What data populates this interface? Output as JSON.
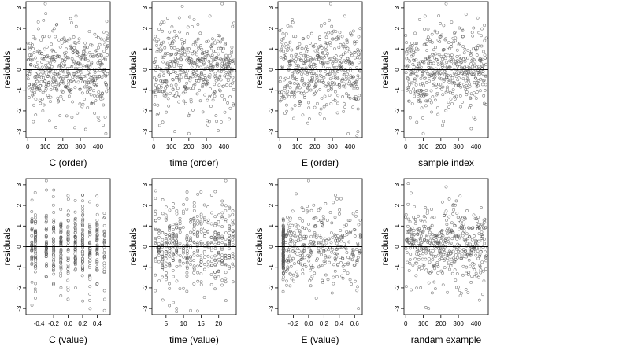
{
  "chart_data": [
    {
      "type": "scatter",
      "xlabel": "C (order)",
      "ylabel": "residuals",
      "xlim": [
        -10,
        470
      ],
      "ylim": [
        -3.3,
        3.3
      ],
      "xticks": [
        0,
        100,
        200,
        300,
        400
      ],
      "xtick_labels": [
        "0",
        "100",
        "200",
        "300",
        "400"
      ],
      "yticks": [
        -3,
        -2,
        -1,
        0,
        1,
        2,
        3
      ],
      "ytick_labels": [
        "-3",
        "-2",
        "-1",
        "0",
        "1",
        "2",
        "3"
      ],
      "hline": 0,
      "n_points": 460,
      "pattern": "index",
      "seed": 11,
      "points_sample": [
        {
          "x": 100,
          "y": 3.2
        },
        {
          "x": 275,
          "y": 2.6
        },
        {
          "x": 45,
          "y": -2.2
        },
        {
          "x": 160,
          "y": -2.8
        },
        {
          "x": 445,
          "y": -3.1
        },
        {
          "x": 330,
          "y": -2.9
        }
      ]
    },
    {
      "type": "scatter",
      "xlabel": "time (order)",
      "ylabel": "residuals",
      "xlim": [
        -10,
        470
      ],
      "ylim": [
        -3.3,
        3.3
      ],
      "xticks": [
        0,
        100,
        200,
        300,
        400
      ],
      "xtick_labels": [
        "0",
        "100",
        "200",
        "300",
        "400"
      ],
      "yticks": [
        -3,
        -2,
        -1,
        0,
        1,
        2,
        3
      ],
      "ytick_labels": [
        "-3",
        "-2",
        "-1",
        "0",
        "1",
        "2",
        "3"
      ],
      "hline": 0,
      "n_points": 460,
      "pattern": "index",
      "seed": 23,
      "points_sample": [
        {
          "x": 390,
          "y": 3.2
        },
        {
          "x": 320,
          "y": 2.6
        },
        {
          "x": 120,
          "y": -3.0
        },
        {
          "x": 200,
          "y": -3.1
        },
        {
          "x": 430,
          "y": -2.4
        }
      ]
    },
    {
      "type": "scatter",
      "xlabel": "E (order)",
      "ylabel": "residuals",
      "xlim": [
        -10,
        470
      ],
      "ylim": [
        -3.3,
        3.3
      ],
      "xticks": [
        0,
        100,
        200,
        300,
        400
      ],
      "xtick_labels": [
        "0",
        "100",
        "200",
        "300",
        "400"
      ],
      "yticks": [
        -3,
        -2,
        -1,
        0,
        1,
        2,
        3
      ],
      "ytick_labels": [
        "-3",
        "-2",
        "-1",
        "0",
        "1",
        "2",
        "3"
      ],
      "hline": 0,
      "n_points": 460,
      "pattern": "index",
      "seed": 37,
      "points_sample": [
        {
          "x": 290,
          "y": 3.2
        },
        {
          "x": 370,
          "y": 2.6
        },
        {
          "x": 160,
          "y": -2.6
        },
        {
          "x": 445,
          "y": -3.0
        },
        {
          "x": 440,
          "y": -3.2
        }
      ]
    },
    {
      "type": "scatter",
      "xlabel": "sample index",
      "ylabel": "residuals",
      "xlim": [
        -10,
        470
      ],
      "ylim": [
        -3.3,
        3.3
      ],
      "xticks": [
        0,
        100,
        200,
        300,
        400
      ],
      "xtick_labels": [
        "0",
        "100",
        "200",
        "300",
        "400"
      ],
      "yticks": [
        -3,
        -2,
        -1,
        0,
        1,
        2,
        3
      ],
      "ytick_labels": [
        "-3",
        "-2",
        "-1",
        "0",
        "1",
        "2",
        "3"
      ],
      "hline": 0,
      "n_points": 460,
      "pattern": "index",
      "seed": 41,
      "points_sample": [
        {
          "x": 230,
          "y": 3.2
        },
        {
          "x": 110,
          "y": 2.6
        },
        {
          "x": 100,
          "y": -3.1
        },
        {
          "x": 210,
          "y": -2.7
        }
      ]
    },
    {
      "type": "scatter",
      "xlabel": "C (value)",
      "ylabel": "residuals",
      "xlim": [
        -0.58,
        0.58
      ],
      "ylim": [
        -3.3,
        3.3
      ],
      "xticks": [
        -0.4,
        -0.2,
        0.0,
        0.2,
        0.4
      ],
      "xtick_labels": [
        "-0.4",
        "-0.2",
        "0.0",
        "0.2",
        "0.4"
      ],
      "yticks": [
        -3,
        -2,
        -1,
        0,
        1,
        2,
        3
      ],
      "ytick_labels": [
        "-3",
        "-2",
        "-1",
        "0",
        "1",
        "2",
        "3"
      ],
      "hline": 0,
      "n_points": 460,
      "pattern": "columns",
      "seed": 53,
      "columns": [
        -0.5,
        -0.45,
        -0.3,
        -0.2,
        -0.1,
        0.0,
        0.1,
        0.2,
        0.3,
        0.4,
        0.5
      ],
      "points_sample": [
        {
          "x": -0.3,
          "y": 3.2
        },
        {
          "x": 0.2,
          "y": 2.5
        },
        {
          "x": 0.5,
          "y": -3.1
        },
        {
          "x": -0.45,
          "y": -2.5
        }
      ]
    },
    {
      "type": "scatter",
      "xlabel": "time (value)",
      "ylabel": "residuals",
      "xlim": [
        1,
        25
      ],
      "ylim": [
        -3.3,
        3.3
      ],
      "xticks": [
        5,
        10,
        15,
        20
      ],
      "xtick_labels": [
        "5",
        "10",
        "15",
        "20"
      ],
      "yticks": [
        -3,
        -2,
        -1,
        0,
        1,
        2,
        3
      ],
      "ytick_labels": [
        "-3",
        "-2",
        "-1",
        "0",
        "1",
        "2",
        "3"
      ],
      "hline": 0,
      "n_points": 460,
      "pattern": "columns",
      "seed": 67,
      "columns": [
        2,
        3,
        4,
        5,
        6,
        7,
        8,
        9,
        10,
        11,
        12,
        13,
        14,
        15,
        16,
        17,
        18,
        19,
        20,
        21,
        22,
        23,
        24
      ],
      "points_sample": [
        {
          "x": 22,
          "y": 3.2
        },
        {
          "x": 18,
          "y": 2.5
        },
        {
          "x": 8,
          "y": -3.0
        },
        {
          "x": 12,
          "y": -3.1
        }
      ]
    },
    {
      "type": "scatter",
      "xlabel": "E (value)",
      "ylabel": "residuals",
      "xlim": [
        -0.4,
        0.7
      ],
      "ylim": [
        -3.3,
        3.3
      ],
      "xticks": [
        -0.2,
        0.0,
        0.2,
        0.4,
        0.6
      ],
      "xtick_labels": [
        "-0.2",
        "0.0",
        "0.2",
        "0.4",
        "0.6"
      ],
      "yticks": [
        -3,
        -2,
        -1,
        0,
        1,
        2,
        3
      ],
      "ytick_labels": [
        "-3",
        "-2",
        "-1",
        "0",
        "1",
        "2",
        "3"
      ],
      "hline": 0,
      "n_points": 460,
      "pattern": "skewed",
      "seed": 79,
      "dense_column": -0.33,
      "points_sample": [
        {
          "x": 0.0,
          "y": 3.2
        },
        {
          "x": 0.35,
          "y": 2.5
        },
        {
          "x": 0.65,
          "y": -3.0
        },
        {
          "x": 0.1,
          "y": -2.5
        }
      ]
    },
    {
      "type": "scatter",
      "xlabel": "randam example",
      "ylabel": "residuals",
      "xlim": [
        -10,
        470
      ],
      "ylim": [
        -3.3,
        3.3
      ],
      "xticks": [
        0,
        100,
        200,
        300,
        400
      ],
      "xtick_labels": [
        "0",
        "100",
        "200",
        "300",
        "400"
      ],
      "yticks": [
        -3,
        -2,
        -1,
        0,
        1,
        2,
        3
      ],
      "ytick_labels": [
        "-3",
        "-2",
        "-1",
        "0",
        "1",
        "2",
        "3"
      ],
      "hline": 0,
      "n_points": 460,
      "pattern": "index",
      "seed": 97,
      "points_sample": [
        {
          "x": 230,
          "y": 2.9
        },
        {
          "x": 30,
          "y": 2.6
        },
        {
          "x": 130,
          "y": -3.0
        },
        {
          "x": 420,
          "y": -2.6
        }
      ]
    }
  ]
}
